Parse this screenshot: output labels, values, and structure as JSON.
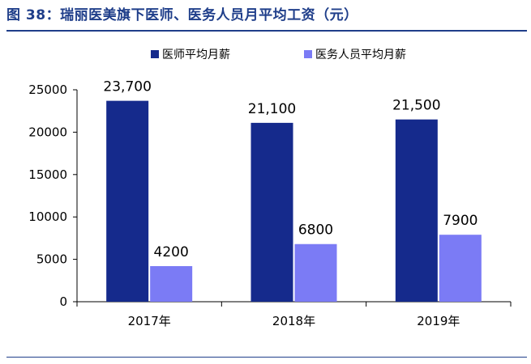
{
  "figure_title": "图 38：瑞丽医美旗下医师、医务人员月平均工资（元）",
  "colors": {
    "series1": "#152A8C",
    "series2": "#7B7BF5",
    "title": "#1F3E8A",
    "axis": "#000000"
  },
  "chart_data": {
    "type": "bar",
    "title": "",
    "xlabel": "",
    "ylabel": "",
    "categories": [
      "2017年",
      "2018年",
      "2019年"
    ],
    "series": [
      {
        "name": "医师平均月薪",
        "values": [
          23700,
          21100,
          21500
        ],
        "labels": [
          "23,700",
          "21,100",
          "21,500"
        ]
      },
      {
        "name": "医务人员平均月薪",
        "values": [
          4200,
          6800,
          7900
        ],
        "labels": [
          "4200",
          "6800",
          "7900"
        ]
      }
    ],
    "ylim": [
      0,
      25000
    ],
    "yticks": [
      0,
      5000,
      10000,
      15000,
      20000,
      25000
    ],
    "grid": false,
    "legend": "top-center"
  }
}
